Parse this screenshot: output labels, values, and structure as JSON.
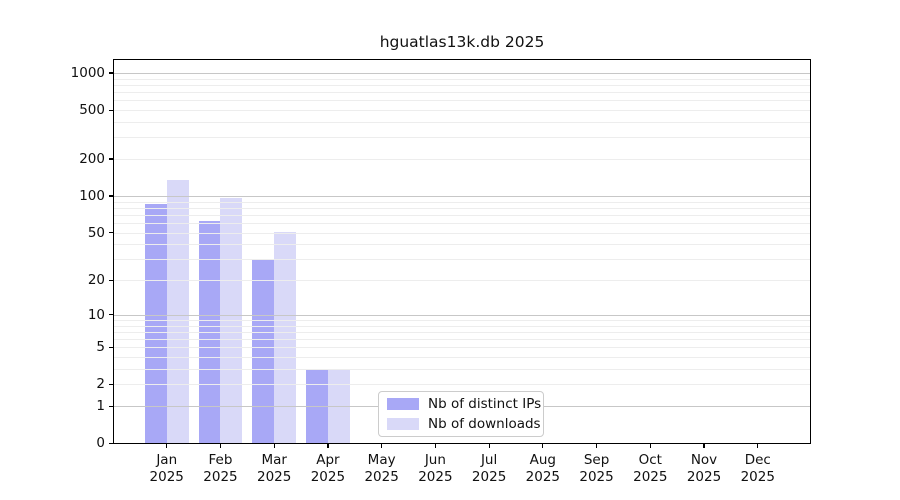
{
  "chart_data": {
    "type": "bar",
    "title": "hguatlas13k.db 2025",
    "scale": "log1p",
    "scale_note": "y position proportional to log10(1+value); symlog-like with 0 baseline",
    "categories": [
      "Jan",
      "Feb",
      "Mar",
      "Apr",
      "May",
      "Jun",
      "Jul",
      "Aug",
      "Sep",
      "Oct",
      "Nov",
      "Dec"
    ],
    "category_year": "2025",
    "series": [
      {
        "name": "Nb of distinct IPs",
        "color": "#a8a8f6",
        "values": [
          86,
          62,
          30,
          3,
          0,
          0,
          0,
          0,
          0,
          0,
          0,
          0
        ]
      },
      {
        "name": "Nb of downloads",
        "color": "#d9d9f8",
        "values": [
          136,
          97,
          51,
          3,
          0,
          0,
          0,
          0,
          0,
          0,
          0,
          0
        ]
      }
    ],
    "ytick_labels": [
      1000,
      500,
      200,
      100,
      50,
      20,
      10,
      5,
      2,
      1,
      0
    ],
    "ylim": [
      0,
      1300
    ],
    "grid": "horizontal major and minor gridlines",
    "legend_position": "inside axes, lower center",
    "frame_color": "#000000",
    "gridline_major_color": "#c7c7c7",
    "gridline_minor_color": "#ededed"
  }
}
